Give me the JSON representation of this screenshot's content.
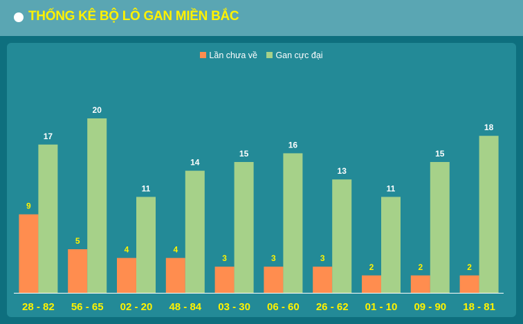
{
  "header": {
    "title": "THỐNG KÊ BỘ LÔ GAN MIỀN BẮC"
  },
  "legend": {
    "items": [
      {
        "label": "Lần chưa về",
        "color": "#ff8d4f"
      },
      {
        "label": "Gan cực đại",
        "color": "#a6d189"
      }
    ]
  },
  "colors": {
    "header_bg": "#5aa6b3",
    "panel_bg": "#238a97",
    "title": "#fff200",
    "category_label": "#fff200",
    "series1_label": "#fff200",
    "series2_label": "#ffffff",
    "axis_line": "#ffffff"
  },
  "chart_data": {
    "type": "bar",
    "categories": [
      "28 - 82",
      "56 - 65",
      "02 - 20",
      "48 - 84",
      "03 - 30",
      "06 - 60",
      "26 - 62",
      "01 - 10",
      "09 - 90",
      "18 - 81"
    ],
    "series": [
      {
        "name": "Lần chưa về",
        "values": [
          9,
          5,
          4,
          4,
          3,
          3,
          3,
          2,
          2,
          2
        ],
        "color": "#ff8d4f"
      },
      {
        "name": "Gan cực đại",
        "values": [
          17,
          20,
          11,
          14,
          15,
          16,
          13,
          11,
          15,
          18
        ],
        "color": "#a6d189"
      }
    ],
    "ylim": [
      0,
      20
    ],
    "grid": false,
    "legend_position": "top-center",
    "data_labels": true
  }
}
